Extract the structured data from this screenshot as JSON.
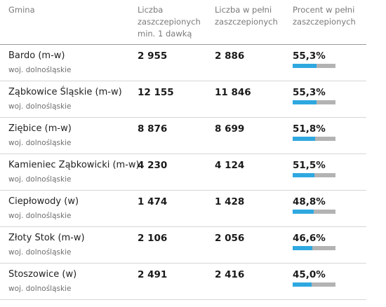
{
  "header": {
    "gmina": "Gmina",
    "col1": "Liczba zaszczepionych min. 1 dawką",
    "col2": "Liczba w pełni zaszczepionych",
    "col3": "Procent w pełni zaszczepionych"
  },
  "colors": {
    "bar_fill": "#2fa8e0",
    "bar_track": "#b3b3b3"
  },
  "rows": [
    {
      "name": "Bardo (m-w)",
      "region": "woj. dolnośląskie",
      "dose1": "2 955",
      "full": "2 886",
      "percent": "55,3%",
      "fraction": 0.553
    },
    {
      "name": "Ząbkowice Śląskie (m-w)",
      "region": "woj. dolnośląskie",
      "dose1": "12 155",
      "full": "11 846",
      "percent": "55,3%",
      "fraction": 0.553
    },
    {
      "name": "Ziębice (m-w)",
      "region": "woj. dolnośląskie",
      "dose1": "8 876",
      "full": "8 699",
      "percent": "51,8%",
      "fraction": 0.518
    },
    {
      "name": "Kamieniec Ząbkowicki (m-w)",
      "region": "woj. dolnośląskie",
      "dose1": "4 230",
      "full": "4 124",
      "percent": "51,5%",
      "fraction": 0.515
    },
    {
      "name": "Ciepłowody (w)",
      "region": "woj. dolnośląskie",
      "dose1": "1 474",
      "full": "1 428",
      "percent": "48,8%",
      "fraction": 0.488
    },
    {
      "name": "Złoty Stok (m-w)",
      "region": "woj. dolnośląskie",
      "dose1": "2 106",
      "full": "2 056",
      "percent": "46,6%",
      "fraction": 0.466
    },
    {
      "name": "Stoszowice (w)",
      "region": "woj. dolnośląskie",
      "dose1": "2 491",
      "full": "2 416",
      "percent": "45,0%",
      "fraction": 0.45
    }
  ]
}
